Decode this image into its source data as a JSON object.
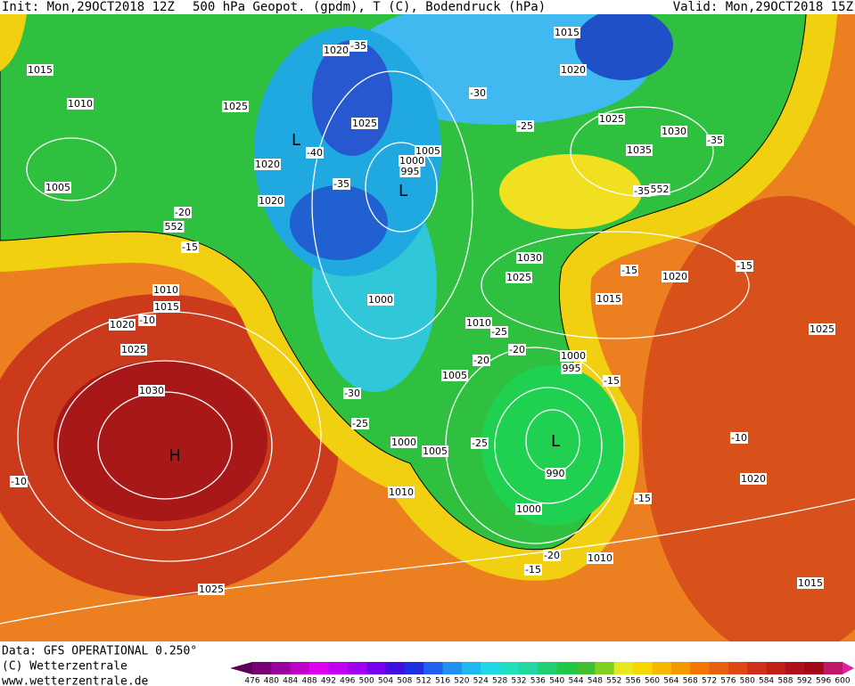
{
  "header": {
    "init": "Init: Mon,29OCT2018 12Z",
    "title": "500 hPa Geopot. (gpdm), T (C), Bodendruck (hPa)",
    "valid": "Valid: Mon,29OCT2018 15Z"
  },
  "footer": {
    "source": "Data: GFS OPERATIONAL 0.250°",
    "copyright": "(C) Wetterzentrale",
    "website": "www.wetterzentrale.de"
  },
  "isobar_labels": [
    "1015",
    "1010",
    "1025",
    "1020",
    "1025",
    "1020",
    "1020",
    "1005",
    "1005",
    "1000",
    "995",
    "1015",
    "1020",
    "1025",
    "1030",
    "1035",
    "1030",
    "1025",
    "1015",
    "1020",
    "1025",
    "1010",
    "1015",
    "1020",
    "1025",
    "1030",
    "1000",
    "1010",
    "1005",
    "1000",
    "995",
    "1000",
    "1005",
    "1010",
    "990",
    "1000",
    "1010",
    "1020",
    "1015",
    "1025"
  ],
  "temperature_labels": [
    "-35",
    "-30",
    "-25",
    "-35",
    "-40",
    "-35",
    "-35",
    "-20",
    "-15",
    "-10",
    "-15",
    "-15",
    "-25",
    "-20",
    "-20",
    "-30",
    "-25",
    "-25",
    "-15",
    "-10",
    "-10",
    "-15",
    "-20",
    "-15",
    "552",
    "552"
  ],
  "pressure_centers": [
    "H",
    "L",
    "L",
    "L"
  ],
  "colorbar": {
    "values": [
      476,
      480,
      484,
      488,
      492,
      496,
      500,
      504,
      508,
      512,
      516,
      520,
      524,
      528,
      532,
      536,
      540,
      544,
      548,
      552,
      556,
      560,
      564,
      568,
      572,
      576,
      580,
      584,
      588,
      592,
      596,
      600
    ],
    "colors": [
      "#5a005a",
      "#7a0078",
      "#9a00a0",
      "#c000c8",
      "#e000f0",
      "#c000f0",
      "#a000f0",
      "#7800f0",
      "#4010e0",
      "#2030e0",
      "#2060f0",
      "#2090f0",
      "#20b8f0",
      "#20d8e8",
      "#20e0c0",
      "#20d8a0",
      "#20d070",
      "#20c848",
      "#40c030",
      "#80d020",
      "#e8e820",
      "#f8d800",
      "#f8b800",
      "#f89800",
      "#f07800",
      "#e86010",
      "#e04818",
      "#d03018",
      "#c02018",
      "#b01018",
      "#a00818",
      "#c01868",
      "#e020a0"
    ]
  }
}
